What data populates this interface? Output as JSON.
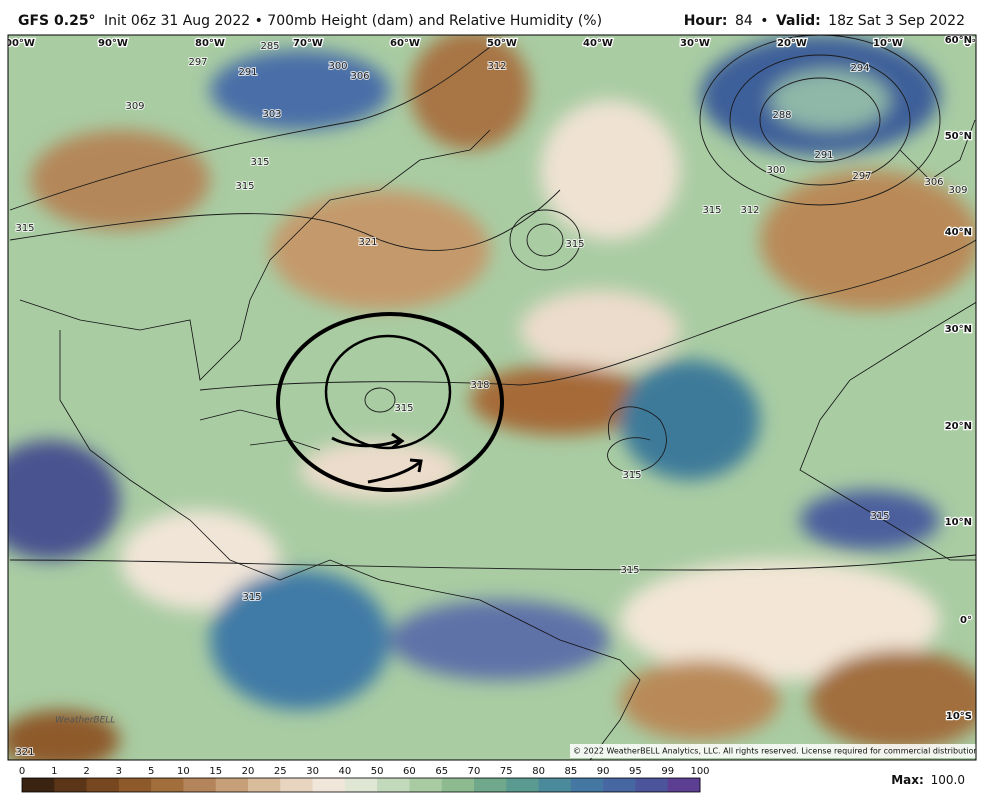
{
  "header": {
    "model": "GFS 0.25°",
    "description": "Init 06z 31 Aug 2022 • 700mb Height (dam) and Relative Humidity (%)",
    "hour_label": "Hour:",
    "hour": "84",
    "separator": "•",
    "valid_label": "Valid:",
    "valid": "18z Sat 3 Sep 2022"
  },
  "longitude_labels": [
    "00°W",
    "90°W",
    "80°W",
    "70°W",
    "60°W",
    "50°W",
    "40°W",
    "30°W",
    "20°W",
    "10°W",
    "0°"
  ],
  "latitude_labels": [
    "60°N",
    "50°N",
    "40°N",
    "30°N",
    "20°N",
    "10°N",
    "0°",
    "10°S"
  ],
  "contour_labels": [
    "309",
    "297",
    "291",
    "285",
    "303",
    "300",
    "306",
    "312",
    "315",
    "315",
    "321",
    "315",
    "315",
    "318",
    "315",
    "294",
    "288",
    "291",
    "300",
    "297",
    "312",
    "315",
    "306",
    "309",
    "315",
    "315",
    "315",
    "315",
    "321"
  ],
  "colorbar": {
    "ticks": [
      0,
      1,
      2,
      3,
      5,
      10,
      15,
      20,
      25,
      30,
      40,
      50,
      60,
      65,
      70,
      75,
      80,
      85,
      90,
      95,
      99,
      100
    ],
    "colors": [
      "#3a2411",
      "#5a3518",
      "#774720",
      "#8e5a2c",
      "#a16e3c",
      "#b4845a",
      "#c7a07a",
      "#d8bc9c",
      "#e7d5c0",
      "#f1e6da",
      "#dfe6d4",
      "#c3d9bc",
      "#a8cba1",
      "#8dbb8f",
      "#6fa88a",
      "#5a9a90",
      "#4b8a9a",
      "#4478a2",
      "#4667a2",
      "#4c549c",
      "#5c3f93"
    ]
  },
  "max": {
    "label": "Max:",
    "value": "100.0"
  },
  "logo": "WeatherBELL",
  "copyright": "© 2022 WeatherBELL Analytics, LLC. All rights reserved. License required for commercial distribution."
}
